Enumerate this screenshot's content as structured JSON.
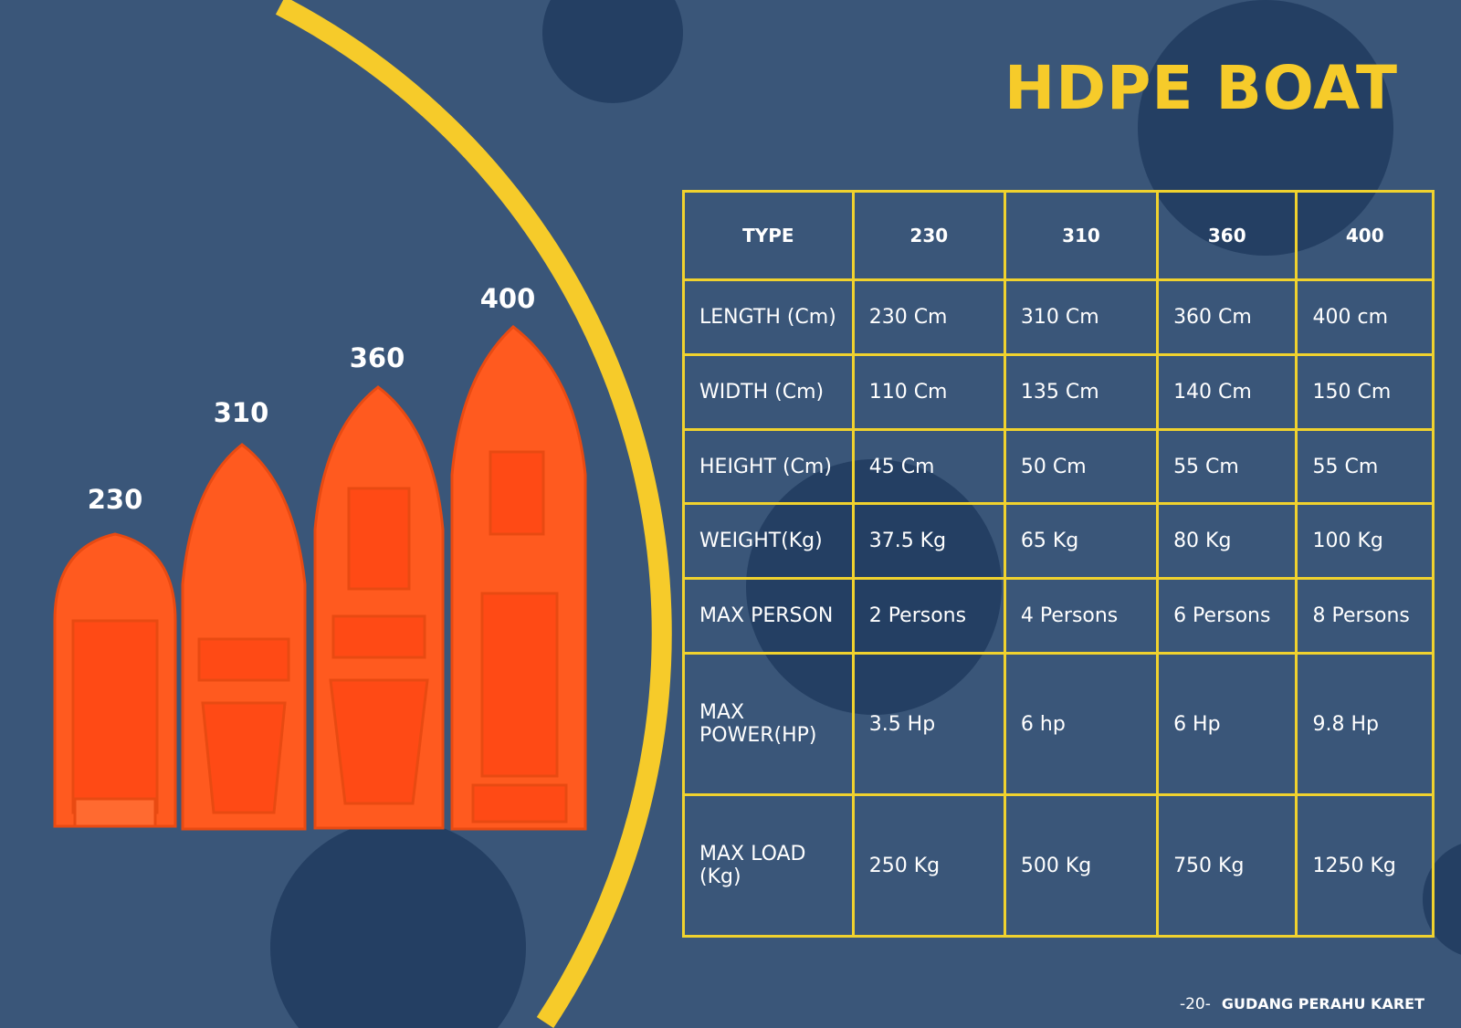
{
  "title": "HDPE BOAT",
  "colors": {
    "background": "#3a5679",
    "circle": "#243f63",
    "accent": "#f6cb2a",
    "boat": "#ff5a1f"
  },
  "boats": [
    {
      "label": "230"
    },
    {
      "label": "310"
    },
    {
      "label": "360"
    },
    {
      "label": "400"
    }
  ],
  "table": {
    "headers": [
      "TYPE",
      "230",
      "310",
      "360",
      "400"
    ],
    "rows": [
      [
        "LENGTH (Cm)",
        "230 Cm",
        "310 Cm",
        "360 Cm",
        "400 cm"
      ],
      [
        "WIDTH (Cm)",
        "110 Cm",
        "135 Cm",
        "140 Cm",
        "150 Cm"
      ],
      [
        "HEIGHT (Cm)",
        "45 Cm",
        "50 Cm",
        "55 Cm",
        "55 Cm"
      ],
      [
        "WEIGHT(Kg)",
        "37.5 Kg",
        "65 Kg",
        "80 Kg",
        "100 Kg"
      ],
      [
        "MAX PERSON",
        "2 Persons",
        "4 Persons",
        "6 Persons",
        "8 Persons"
      ],
      [
        "MAX POWER(HP)",
        "3.5 Hp",
        "6 hp",
        "6 Hp",
        "9.8 Hp"
      ],
      [
        "MAX LOAD (Kg)",
        "250 Kg",
        "500 Kg",
        "750 Kg",
        "1250 Kg"
      ]
    ]
  },
  "footer": {
    "page": "-20-",
    "brand": "GUDANG PERAHU KARET"
  }
}
